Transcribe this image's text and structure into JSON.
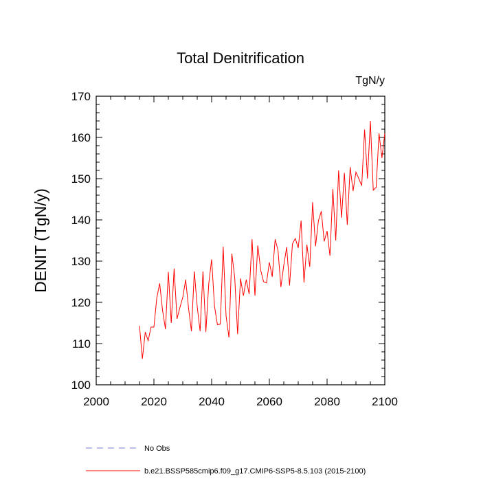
{
  "chart_data": {
    "type": "line",
    "title": "Total Denitrification",
    "units_label": "TgN/y",
    "xlabel": "",
    "ylabel": "DENIT  (TgN/y)",
    "xlim": [
      2000,
      2100
    ],
    "ylim": [
      100,
      170
    ],
    "x_ticks": [
      2000,
      2020,
      2040,
      2060,
      2080,
      2100
    ],
    "y_ticks": [
      100,
      110,
      120,
      130,
      140,
      150,
      160,
      170
    ],
    "grid": false,
    "series": [
      {
        "name": "b.e21.BSSP585cmip6.f09_g17.CMIP6-SSP5-8.5.103 (2015-2100)",
        "color": "#ff0000",
        "style": "solid",
        "x": [
          2015,
          2016,
          2017,
          2018,
          2019,
          2020,
          2021,
          2022,
          2023,
          2024,
          2025,
          2026,
          2027,
          2028,
          2029,
          2030,
          2031,
          2032,
          2033,
          2034,
          2035,
          2036,
          2037,
          2038,
          2039,
          2040,
          2041,
          2042,
          2043,
          2044,
          2045,
          2046,
          2047,
          2048,
          2049,
          2050,
          2051,
          2052,
          2053,
          2054,
          2055,
          2056,
          2057,
          2058,
          2059,
          2060,
          2061,
          2062,
          2063,
          2064,
          2065,
          2066,
          2067,
          2068,
          2069,
          2070,
          2071,
          2072,
          2073,
          2074,
          2075,
          2076,
          2077,
          2078,
          2079,
          2080,
          2081,
          2082,
          2083,
          2084,
          2085,
          2086,
          2087,
          2088,
          2089,
          2090,
          2091,
          2092,
          2093,
          2094,
          2095,
          2096,
          2097,
          2098,
          2099,
          2100
        ],
        "values": [
          114.3,
          106.3,
          112.8,
          110.7,
          114.0,
          114.0,
          121.1,
          124.6,
          118.0,
          113.5,
          127.4,
          115.0,
          128.2,
          116.0,
          118.7,
          121.2,
          125.5,
          118.6,
          113.0,
          127.5,
          119.0,
          113.0,
          127.5,
          112.8,
          124.5,
          130.4,
          119.0,
          114.6,
          114.7,
          133.5,
          116.7,
          111.5,
          131.8,
          126.0,
          112.3,
          125.8,
          121.6,
          125.5,
          122.0,
          135.3,
          121.6,
          133.8,
          127.8,
          125.0,
          124.7,
          129.7,
          126.2,
          135.3,
          132.6,
          123.7,
          129.0,
          133.4,
          124.1,
          134.2,
          135.5,
          133.2,
          139.8,
          124.8,
          134.0,
          128.6,
          144.3,
          133.6,
          139.8,
          142.1,
          134.8,
          137.3,
          131.3,
          147.5,
          135.0,
          152.0,
          140.5,
          151.4,
          138.8,
          152.8,
          147.0,
          151.6,
          150.0,
          148.3,
          161.9,
          150.0,
          164.0,
          147.2,
          147.9,
          161.0,
          155.0,
          161.0
        ]
      },
      {
        "name": "No Obs",
        "color": "#7b7bdd",
        "style": "dashed",
        "x": [],
        "values": []
      }
    ],
    "legend_position": "bottom-left"
  }
}
